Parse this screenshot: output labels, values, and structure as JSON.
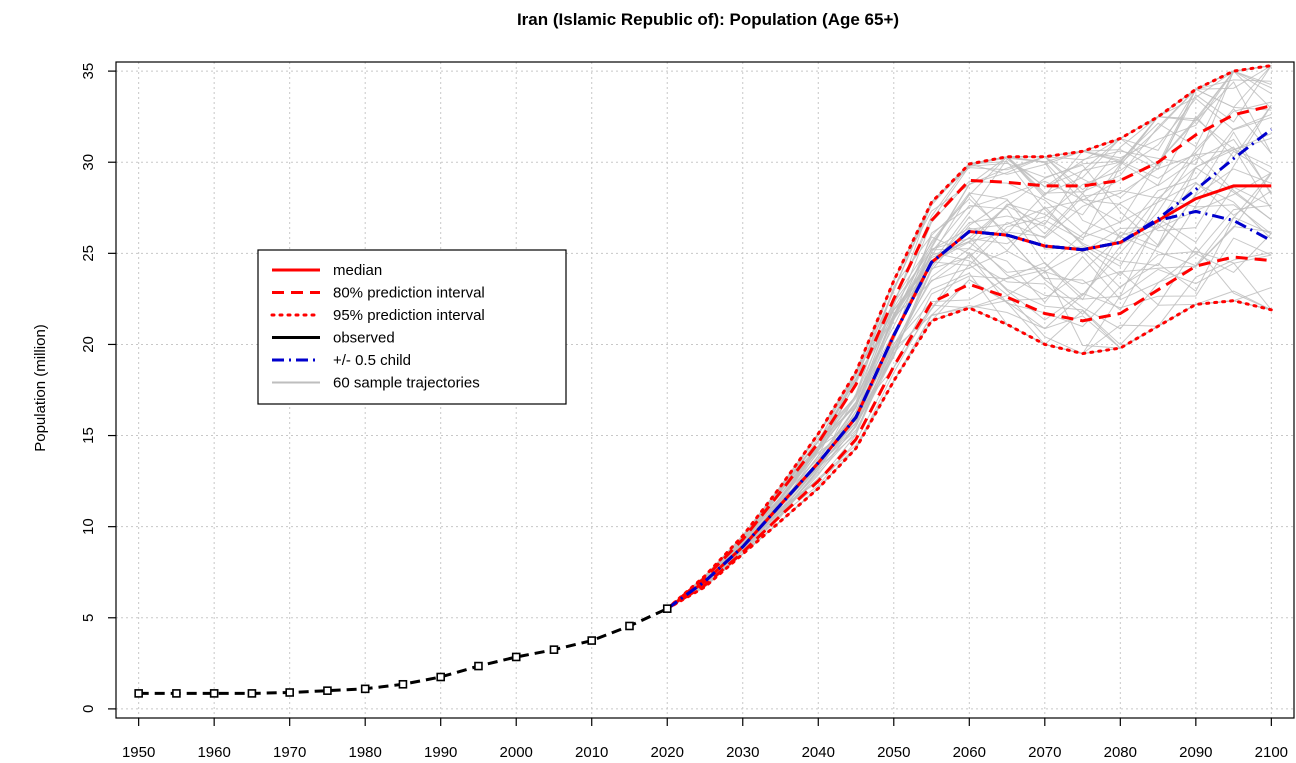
{
  "chart_data": {
    "type": "line",
    "title": "Iran (Islamic Republic of): Population (Age 65+)",
    "ylabel": "Population (million)",
    "xlabel": "",
    "xlim": [
      1947,
      2103
    ],
    "ylim": [
      -0.5,
      35.5
    ],
    "xticks": [
      1950,
      1960,
      1970,
      1980,
      1990,
      2000,
      2010,
      2020,
      2030,
      2040,
      2050,
      2060,
      2070,
      2080,
      2090,
      2100
    ],
    "yticks": [
      0,
      5,
      10,
      15,
      20,
      25,
      30,
      35
    ],
    "grid": true,
    "legend_position": "upper-left",
    "legend": [
      {
        "label": "median",
        "color": "#ff0000",
        "style": "solid"
      },
      {
        "label": "80% prediction interval",
        "color": "#ff0000",
        "style": "dashed"
      },
      {
        "label": "95% prediction interval",
        "color": "#ff0000",
        "style": "dotted"
      },
      {
        "label": "observed",
        "color": "#000000",
        "style": "solid"
      },
      {
        "label": "+/- 0.5 child",
        "color": "#0000cd",
        "style": "dashdot"
      },
      {
        "label": "60 sample trajectories",
        "color": "#bebebe",
        "style": "solid"
      }
    ],
    "observed": {
      "x": [
        1950,
        1955,
        1960,
        1965,
        1970,
        1975,
        1980,
        1985,
        1990,
        1995,
        2000,
        2005,
        2010,
        2015,
        2020
      ],
      "y": [
        0.85,
        0.85,
        0.85,
        0.85,
        0.9,
        1.0,
        1.1,
        1.35,
        1.75,
        2.35,
        2.85,
        3.25,
        3.75,
        4.55,
        5.5
      ]
    },
    "median": {
      "x": [
        2020,
        2025,
        2030,
        2035,
        2040,
        2045,
        2050,
        2055,
        2060,
        2065,
        2070,
        2075,
        2080,
        2085,
        2090,
        2095,
        2100
      ],
      "y": [
        5.5,
        7.0,
        8.9,
        11.2,
        13.5,
        16.0,
        20.5,
        24.5,
        26.2,
        26.0,
        25.4,
        25.2,
        25.6,
        26.8,
        28.0,
        28.7,
        28.7
      ]
    },
    "pi80_upper": {
      "x": [
        2020,
        2025,
        2030,
        2035,
        2040,
        2045,
        2050,
        2055,
        2060,
        2065,
        2070,
        2075,
        2080,
        2085,
        2090,
        2095,
        2100
      ],
      "y": [
        5.5,
        7.2,
        9.3,
        11.9,
        14.6,
        17.8,
        22.5,
        26.8,
        29.0,
        28.9,
        28.7,
        28.7,
        29.0,
        30.0,
        31.5,
        32.6,
        33.1
      ]
    },
    "pi80_lower": {
      "x": [
        2020,
        2025,
        2030,
        2035,
        2040,
        2045,
        2050,
        2055,
        2060,
        2065,
        2070,
        2075,
        2080,
        2085,
        2090,
        2095,
        2100
      ],
      "y": [
        5.5,
        6.8,
        8.6,
        10.6,
        12.5,
        14.8,
        18.8,
        22.3,
        23.3,
        22.6,
        21.7,
        21.3,
        21.7,
        23.0,
        24.3,
        24.8,
        24.6
      ]
    },
    "pi95_upper": {
      "x": [
        2020,
        2025,
        2030,
        2035,
        2040,
        2045,
        2050,
        2055,
        2060,
        2065,
        2070,
        2075,
        2080,
        2085,
        2090,
        2095,
        2100
      ],
      "y": [
        5.5,
        7.3,
        9.5,
        12.2,
        15.1,
        18.5,
        23.5,
        27.8,
        29.9,
        30.3,
        30.3,
        30.6,
        31.3,
        32.5,
        34.0,
        35.0,
        35.3
      ]
    },
    "pi95_lower": {
      "x": [
        2020,
        2025,
        2030,
        2035,
        2040,
        2045,
        2050,
        2055,
        2060,
        2065,
        2070,
        2075,
        2080,
        2085,
        2090,
        2095,
        2100
      ],
      "y": [
        5.5,
        6.7,
        8.5,
        10.3,
        12.1,
        14.3,
        18.0,
        21.3,
        22.0,
        21.1,
        20.0,
        19.5,
        19.8,
        21.0,
        22.2,
        22.4,
        21.9
      ]
    },
    "plus_half_child": {
      "x": [
        2020,
        2025,
        2030,
        2035,
        2040,
        2045,
        2050,
        2055,
        2060,
        2065,
        2070,
        2075,
        2080,
        2085,
        2090,
        2095,
        2100
      ],
      "y": [
        5.5,
        7.0,
        8.9,
        11.2,
        13.5,
        16.0,
        20.5,
        24.5,
        26.2,
        26.0,
        25.4,
        25.2,
        25.6,
        26.9,
        28.5,
        30.2,
        31.8
      ]
    },
    "minus_half_child": {
      "x": [
        2020,
        2025,
        2030,
        2035,
        2040,
        2045,
        2050,
        2055,
        2060,
        2065,
        2070,
        2075,
        2080,
        2085,
        2090,
        2095,
        2100
      ],
      "y": [
        5.5,
        7.0,
        8.9,
        11.2,
        13.5,
        16.0,
        20.5,
        24.5,
        26.2,
        26.0,
        25.4,
        25.2,
        25.6,
        26.8,
        27.3,
        26.8,
        25.7
      ]
    },
    "sample_trajectories": {
      "count": 60,
      "x": [
        2020,
        2025,
        2030,
        2035,
        2040,
        2045,
        2050,
        2055,
        2060,
        2065,
        2070,
        2075,
        2080,
        2085,
        2090,
        2095,
        2100
      ]
    },
    "colors": {
      "median": "#ff0000",
      "observed": "#000000",
      "child": "#0000cd",
      "samples": "#bebebe",
      "grid": "#c8c8c8"
    }
  }
}
